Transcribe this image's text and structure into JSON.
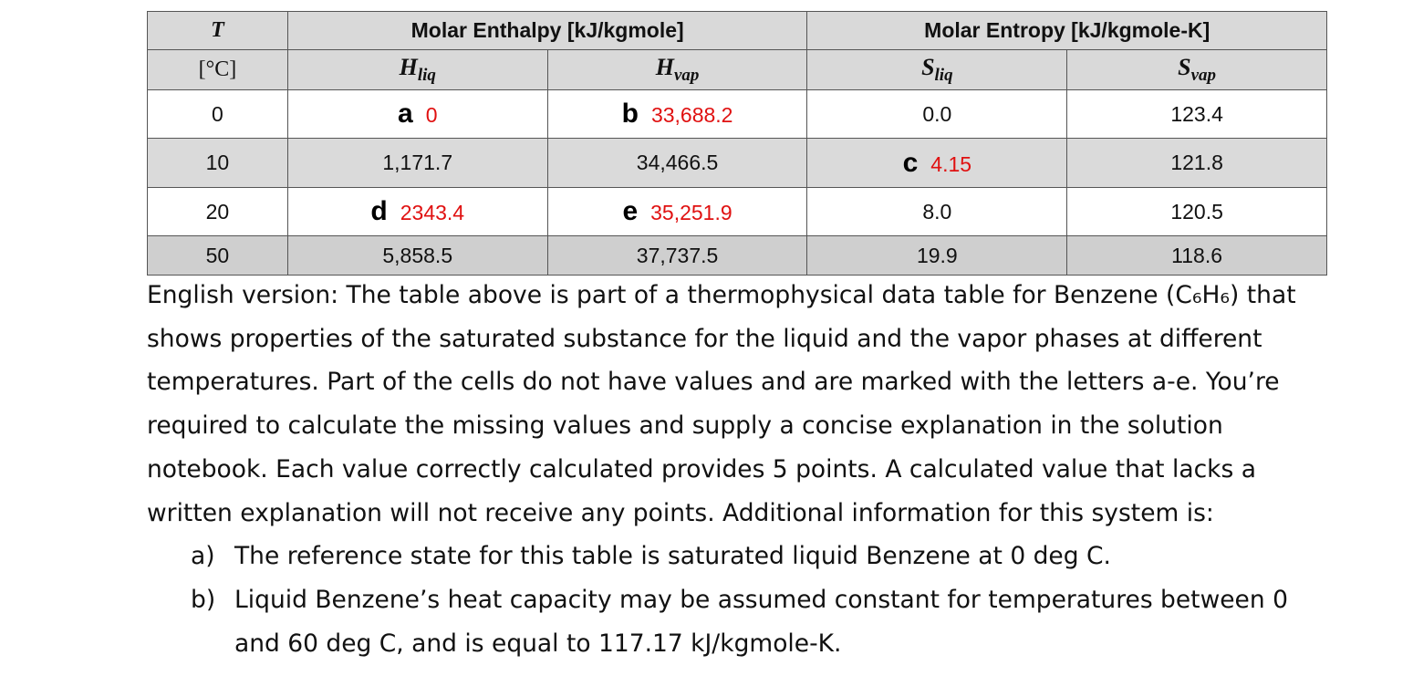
{
  "table": {
    "header": {
      "t_symbol": "T",
      "t_unit": "[°C]",
      "enthalpy": "Molar Enthalpy [kJ/kgmole]",
      "entropy": "Molar Entropy [kJ/kgmole-K]",
      "h_liq": {
        "symbol": "H",
        "sub": "liq"
      },
      "h_vap": {
        "symbol": "H",
        "sub": "vap"
      },
      "s_liq": {
        "symbol": "S",
        "sub": "liq"
      },
      "s_vap": {
        "symbol": "S",
        "sub": "vap"
      }
    },
    "rows": [
      [
        "0",
        {
          "letter": "a",
          "answer": "0"
        },
        {
          "letter": "b",
          "answer": "33,688.2"
        },
        "0.0",
        "123.4"
      ],
      [
        "10",
        "1,171.7",
        "34,466.5",
        {
          "letter": "c",
          "answer": "4.15"
        },
        "121.8"
      ],
      [
        "20",
        {
          "letter": "d",
          "answer": "2343.4"
        },
        {
          "letter": "e",
          "answer": "35,251.9"
        },
        "8.0",
        "120.5"
      ],
      [
        "50",
        "5,858.5",
        "37,737.5",
        "19.9",
        "118.6"
      ]
    ]
  },
  "paragraph": "English version: The table above is part of a thermophysical data table for Benzene (C₆H₆) that shows properties of the saturated substance for the liquid and the vapor phases at different temperatures. Part of the cells do not have values and are marked with the letters a-e. You’re required to calculate the missing values and supply a concise explanation in the solution notebook. Each value correctly calculated provides 5 points. A calculated value that lacks a written explanation will not receive any points. Additional information for this system is:",
  "items": [
    {
      "marker": "a)",
      "text": "The reference state for this table is saturated liquid Benzene at 0 deg C."
    },
    {
      "marker": "b)",
      "text": "Liquid Benzene’s heat capacity may be assumed constant for temperatures between 0 and 60 deg C, and is equal to 117.17 kJ/kgmole-K."
    }
  ]
}
